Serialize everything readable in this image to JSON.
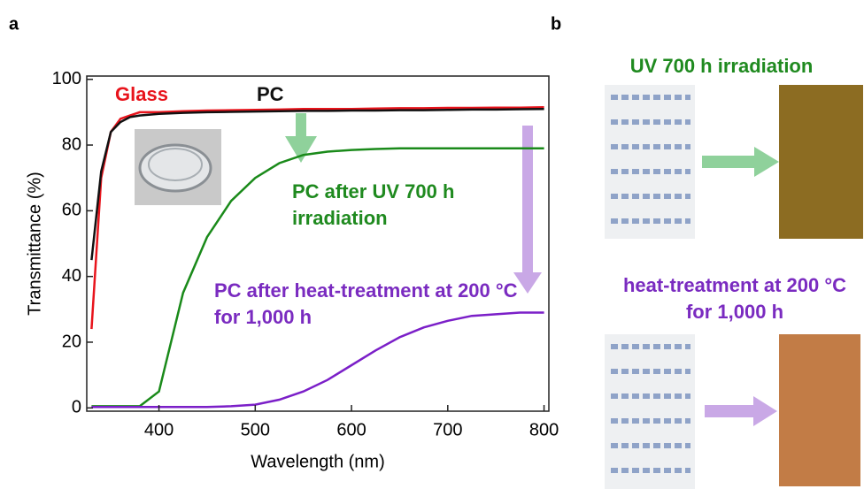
{
  "chart_data": {
    "type": "line",
    "panel_label": "a",
    "xlabel": "Wavelength  (nm)",
    "ylabel": "Transmittance   (%)",
    "x": [
      330,
      340,
      350,
      360,
      370,
      380,
      400,
      425,
      450,
      475,
      500,
      525,
      550,
      575,
      600,
      625,
      650,
      675,
      700,
      725,
      750,
      775,
      800
    ],
    "xlim": [
      325,
      805
    ],
    "ylim": [
      -1,
      101
    ],
    "xticks": [
      400,
      500,
      600,
      700,
      800
    ],
    "yticks": [
      0,
      20,
      40,
      60,
      80,
      100
    ],
    "grid": false,
    "series": [
      {
        "name": "Glass",
        "color": "#e8141c",
        "values": [
          24,
          70,
          84,
          88,
          89,
          90,
          90,
          90.3,
          90.5,
          90.6,
          90.7,
          90.8,
          91,
          91,
          91,
          91.1,
          91.2,
          91.2,
          91.3,
          91.3,
          91.4,
          91.4,
          91.5
        ]
      },
      {
        "name": "PC",
        "color": "#111111",
        "values": [
          45,
          72,
          84,
          87,
          88.5,
          89,
          89.5,
          89.8,
          90,
          90.1,
          90.2,
          90.3,
          90.4,
          90.4,
          90.5,
          90.5,
          90.6,
          90.6,
          90.7,
          90.8,
          90.8,
          90.9,
          91
        ]
      },
      {
        "name": "PC after UV 700 h irradiation",
        "color": "#1a8a1a",
        "values": [
          0.5,
          0.5,
          0.5,
          0.5,
          0.5,
          0.5,
          5,
          35,
          52,
          63,
          70,
          74.5,
          77,
          78,
          78.5,
          78.8,
          79,
          79,
          79,
          79,
          79,
          79,
          79
        ]
      },
      {
        "name": "PC after heat-treatment at 200 °C for 1,000 h",
        "color": "#7b1fc8",
        "values": [
          0.3,
          0.3,
          0.3,
          0.3,
          0.3,
          0.3,
          0.3,
          0.3,
          0.3,
          0.5,
          1,
          2.5,
          5,
          8.5,
          13,
          17.5,
          21.5,
          24.5,
          26.5,
          28,
          28.5,
          29,
          29
        ]
      }
    ]
  },
  "photo_panel": {
    "panel_label": "b",
    "title_top": "UV 700 h irradiation",
    "title_bottom": "heat-treatment at 200 °C for 1,000 h"
  }
}
